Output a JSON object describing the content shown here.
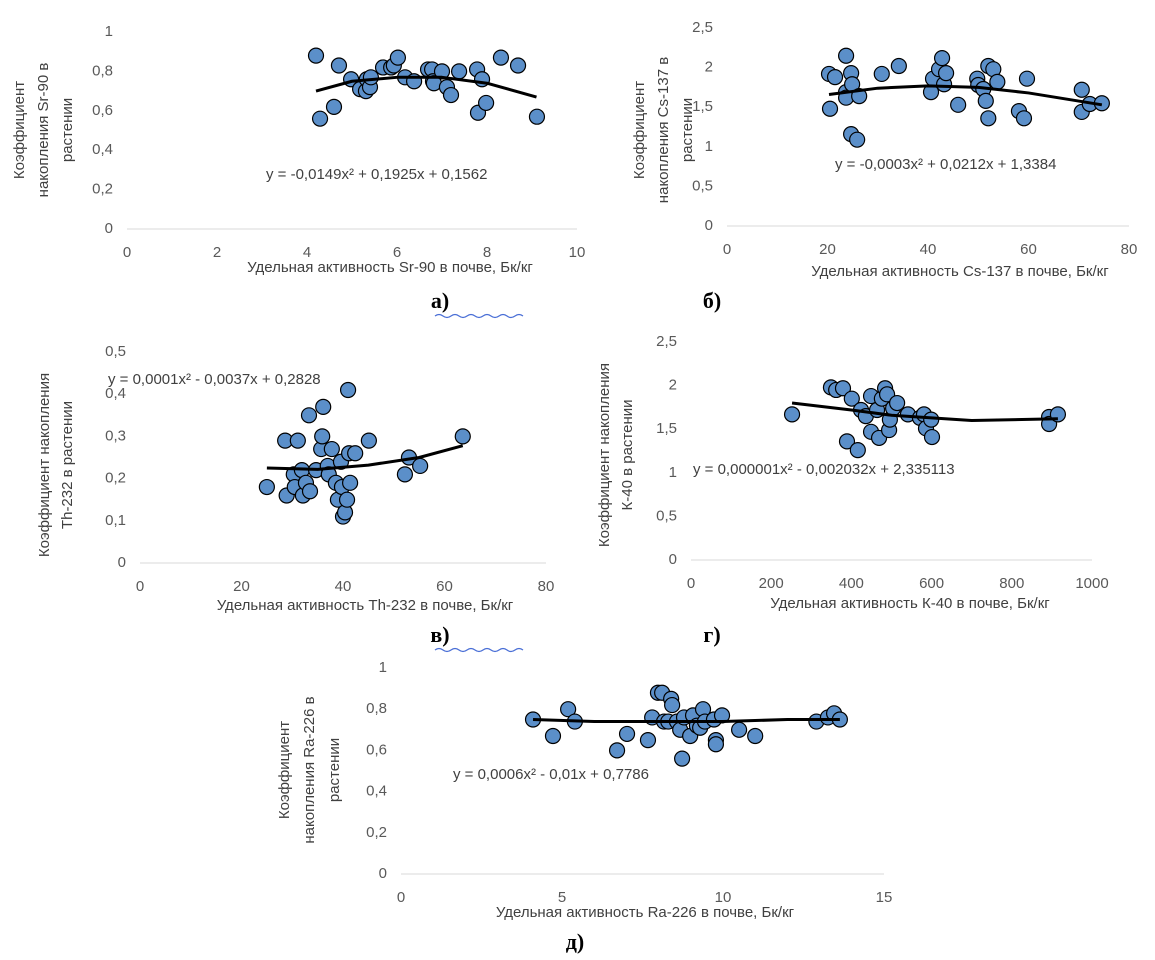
{
  "chart_data": [
    {
      "type": "scatter",
      "caption": "а)",
      "xlabel": "Удельная активность Sr-90 в почве, Бк/кг",
      "ylabel": [
        "Коэффициент",
        "накопления Sr-90 в",
        "растении"
      ],
      "equation": "y = -0,0149x² + 0,1925x + 0,1562",
      "color": "#5b8fc9",
      "x": [
        4.2,
        4.29,
        4.6,
        4.71,
        4.98,
        5.18,
        5.31,
        5.33,
        5.4,
        5.42,
        5.69,
        5.87,
        5.93,
        6.02,
        6.18,
        6.38,
        6.69,
        6.78,
        6.8,
        6.82,
        7.0,
        7.11,
        7.2,
        7.38,
        7.78,
        7.8,
        7.89,
        7.98,
        8.31,
        8.69,
        9.11
      ],
      "values": [
        0.88,
        0.56,
        0.62,
        0.83,
        0.76,
        0.71,
        0.7,
        0.76,
        0.72,
        0.77,
        0.82,
        0.82,
        0.83,
        0.87,
        0.77,
        0.75,
        0.81,
        0.81,
        0.75,
        0.74,
        0.8,
        0.72,
        0.68,
        0.8,
        0.81,
        0.59,
        0.76,
        0.64,
        0.87,
        0.83,
        0.57
      ],
      "trendline": {
        "x": [
          4.2,
          5,
          6,
          7,
          8,
          9.1
        ],
        "values": [
          0.7,
          0.75,
          0.77,
          0.77,
          0.74,
          0.67
        ]
      },
      "xlim": [
        0,
        10
      ],
      "xticks": [
        0,
        2,
        4,
        6,
        8,
        10
      ],
      "ylim": [
        0,
        1
      ],
      "yticks": [
        0,
        {
          "value": 0.2,
          "label": "0,2"
        },
        {
          "value": 0.4,
          "label": "0,4"
        },
        {
          "value": 0.6,
          "label": "0,6"
        },
        {
          "value": 0.8,
          "label": "0,8"
        },
        1
      ]
    },
    {
      "type": "scatter",
      "caption": "б)",
      "xlabel": "Удельная активность Cs-137 в почве, Бк/кг",
      "ylabel": [
        "Коэффициент",
        "накопления Cs-137 в",
        "растении"
      ],
      "equation": "y = -0,0003x² + 0,0212x + 1,3384",
      "color": "#5b8fc9",
      "x": [
        20.3,
        20.5,
        21.5,
        23.7,
        23.7,
        23.7,
        24.7,
        24.9,
        24.7,
        25.9,
        26.3,
        30.8,
        34.2,
        40.6,
        41,
        42.2,
        42.8,
        43.2,
        43.6,
        46,
        49.8,
        50,
        51,
        51.5,
        52,
        52,
        53,
        53.8,
        58.1,
        59.1,
        59.7,
        70.6,
        70.6,
        72.2,
        74.6
      ],
      "values": [
        1.92,
        1.48,
        1.88,
        2.15,
        1.69,
        1.62,
        1.93,
        1.79,
        1.16,
        1.09,
        1.64,
        1.92,
        2.02,
        1.69,
        1.86,
        1.98,
        2.12,
        1.79,
        1.93,
        1.53,
        1.86,
        1.78,
        1.73,
        1.58,
        2.02,
        1.36,
        1.98,
        1.82,
        1.45,
        1.36,
        1.86,
        1.72,
        1.44,
        1.54,
        1.55
      ],
      "trendline": {
        "x": [
          20.3,
          30,
          40,
          50,
          60,
          74.6
        ],
        "values": [
          1.66,
          1.74,
          1.77,
          1.75,
          1.68,
          1.53
        ]
      },
      "xlim": [
        0,
        80
      ],
      "xticks": [
        0,
        20,
        40,
        60,
        80
      ],
      "ylim": [
        0,
        2.5
      ],
      "yticks": [
        0,
        {
          "value": 0.5,
          "label": "0,5"
        },
        1,
        {
          "value": 1.5,
          "label": "1,5"
        },
        2,
        {
          "value": 2.5,
          "label": "2,5"
        }
      ]
    },
    {
      "type": "scatter",
      "caption": "в)",
      "xlabel": "Удельная активность Th-232 в почве, Бк/кг",
      "ylabel": [
        "Коэффициент накопления",
        "Th-232 в растении"
      ],
      "equation": "y = 0,0001x² - 0,0037x + 0,2828",
      "color": "#5b8fc9",
      "x": [
        25,
        28.6,
        28.9,
        30.3,
        30.5,
        31.1,
        31.9,
        32.1,
        32.7,
        33.5,
        33.3,
        34.7,
        35.7,
        35.9,
        36.1,
        37,
        37.2,
        37.8,
        38.6,
        39,
        39.6,
        39.8,
        40,
        40.4,
        40.8,
        41,
        41.2,
        41.4,
        42.4,
        45.1,
        52.2,
        53,
        55.2,
        63.6
      ],
      "values": [
        0.18,
        0.29,
        0.16,
        0.21,
        0.18,
        0.29,
        0.22,
        0.16,
        0.19,
        0.17,
        0.35,
        0.22,
        0.27,
        0.3,
        0.37,
        0.23,
        0.21,
        0.27,
        0.19,
        0.15,
        0.24,
        0.18,
        0.11,
        0.12,
        0.15,
        0.41,
        0.26,
        0.19,
        0.26,
        0.29,
        0.21,
        0.25,
        0.23,
        0.3
      ],
      "trendline": {
        "x": [
          25,
          35,
          45,
          55,
          63.6
        ],
        "values": [
          0.225,
          0.222,
          0.232,
          0.25,
          0.278
        ]
      },
      "xlim": [
        0,
        80
      ],
      "xticks": [
        0,
        20,
        40,
        60,
        80
      ],
      "ylim": [
        0,
        0.5
      ],
      "yticks": [
        0,
        {
          "value": 0.1,
          "label": "0,1"
        },
        {
          "value": 0.2,
          "label": "0,2"
        },
        {
          "value": 0.3,
          "label": "0,3"
        },
        {
          "value": 0.4,
          "label": "0,4"
        },
        {
          "value": 0.5,
          "label": "0,5"
        }
      ]
    },
    {
      "type": "scatter",
      "caption": "г)",
      "xlabel": "Удельная активность К-40 в почве, Бк/кг",
      "ylabel": [
        "Коэффициент накопления",
        "К-40 в растении"
      ],
      "equation": "y = 0,000001x² - 0,002032x + 2,335113",
      "color": "#5b8fc9",
      "x": [
        252,
        349,
        362,
        379,
        389,
        401,
        416,
        424,
        436,
        449,
        449,
        464,
        469,
        476,
        484,
        489,
        494,
        496,
        504,
        514,
        541,
        571,
        581,
        586,
        599,
        601,
        893,
        893,
        915
      ],
      "values": [
        1.67,
        1.98,
        1.95,
        1.97,
        1.36,
        1.85,
        1.26,
        1.72,
        1.65,
        1.88,
        1.47,
        1.72,
        1.4,
        1.85,
        1.97,
        1.9,
        1.49,
        1.61,
        1.74,
        1.8,
        1.67,
        1.63,
        1.67,
        1.51,
        1.61,
        1.41,
        1.64,
        1.56,
        1.67
      ],
      "trendline": {
        "x": [
          252,
          400,
          500,
          700,
          915
        ],
        "values": [
          1.8,
          1.72,
          1.66,
          1.6,
          1.62
        ]
      },
      "xlim": [
        0,
        1000
      ],
      "xticks": [
        0,
        200,
        400,
        600,
        800,
        1000
      ],
      "ylim": [
        0,
        2.5
      ],
      "yticks": [
        0,
        {
          "value": 0.5,
          "label": "0,5"
        },
        1,
        {
          "value": 1.5,
          "label": "1,5"
        },
        2,
        {
          "value": 2.5,
          "label": "2,5"
        }
      ]
    },
    {
      "type": "scatter",
      "caption": "д)",
      "xlabel": "Удельная активность Ra-226 в почве, Бк/кг",
      "ylabel": [
        "Коэффициент",
        "накопления Ra-226 в",
        "растении"
      ],
      "equation": "y = 0,0006x² - 0,01x + 0,7786",
      "color": "#5b8fc9",
      "x": [
        4.1,
        4.72,
        5.19,
        5.4,
        6.71,
        7.02,
        7.67,
        7.8,
        7.98,
        8.11,
        8.17,
        8.3,
        8.39,
        8.42,
        8.57,
        8.67,
        8.73,
        8.79,
        8.98,
        9.07,
        9.19,
        9.29,
        9.38,
        9.44,
        9.72,
        9.78,
        9.78,
        9.97,
        10.5,
        11,
        12.9,
        13.26,
        13.45,
        13.63
      ],
      "values": [
        0.75,
        0.67,
        0.8,
        0.74,
        0.6,
        0.68,
        0.65,
        0.76,
        0.88,
        0.88,
        0.74,
        0.74,
        0.85,
        0.82,
        0.74,
        0.7,
        0.56,
        0.76,
        0.67,
        0.77,
        0.72,
        0.71,
        0.8,
        0.74,
        0.75,
        0.65,
        0.63,
        0.77,
        0.7,
        0.67,
        0.74,
        0.76,
        0.78,
        0.75
      ],
      "trendline": {
        "x": [
          4.1,
          6,
          8,
          10,
          12,
          13.63
        ],
        "values": [
          0.75,
          0.74,
          0.74,
          0.74,
          0.75,
          0.75
        ]
      },
      "xlim": [
        0,
        15
      ],
      "xticks": [
        0,
        5,
        10,
        15
      ],
      "ylim": [
        0,
        1
      ],
      "yticks": [
        0,
        {
          "value": 0.2,
          "label": "0,2"
        },
        {
          "value": 0.4,
          "label": "0,4"
        },
        {
          "value": 0.6,
          "label": "0,6"
        },
        {
          "value": 0.8,
          "label": "0,8"
        },
        1
      ]
    }
  ]
}
